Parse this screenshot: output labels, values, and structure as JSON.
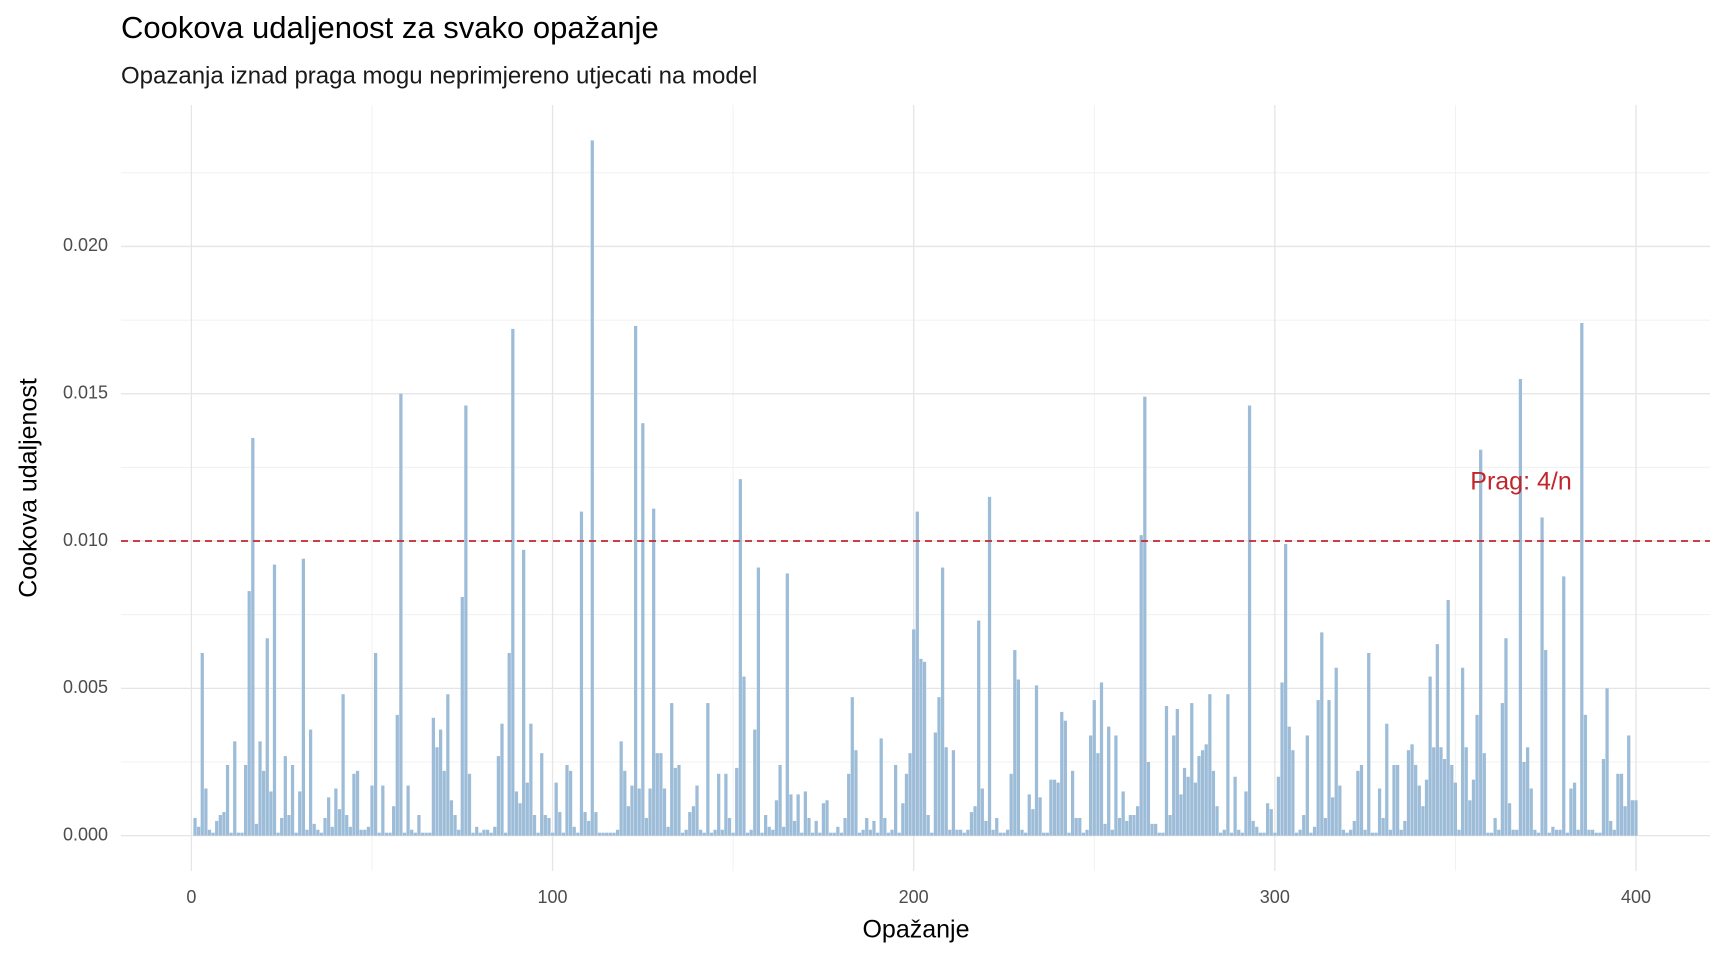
{
  "chart_data": {
    "type": "bar",
    "title": "Cookova udaljenost za svako opažanje",
    "subtitle": "Opazanja iznad praga mogu neprimjereno utjecati na model",
    "x_label": "Opažanje",
    "y_label": "Cookova udaljenost",
    "color": "#9dbcd8",
    "threshold": 0.01,
    "threshold_color": "#c0272d",
    "threshold_label": "Prag: 4/n",
    "grid": true,
    "xlim": [
      -19.5,
      420.5
    ],
    "ylim": [
      -0.0012,
      0.0248
    ],
    "xticks": [
      0,
      100,
      200,
      300,
      400
    ],
    "xminor": [
      50,
      150,
      250,
      350
    ],
    "yticks": [
      {
        "value": 0,
        "label": "0.000"
      },
      {
        "value": 0.005,
        "label": "0.005"
      },
      {
        "value": 0.01,
        "label": "0.010"
      },
      {
        "value": 0.015,
        "label": "0.015"
      },
      {
        "value": 0.02,
        "label": "0.020"
      }
    ],
    "yminor": [
      0.0025,
      0.0075,
      0.0125,
      0.0175,
      0.0225
    ],
    "x": [
      1,
      2,
      3,
      4,
      5,
      6,
      7,
      8,
      9,
      10,
      11,
      12,
      13,
      14,
      15,
      16,
      17,
      18,
      19,
      20,
      21,
      22,
      23,
      24,
      25,
      26,
      27,
      28,
      29,
      30,
      31,
      32,
      33,
      34,
      35,
      36,
      37,
      38,
      39,
      40,
      41,
      42,
      43,
      44,
      45,
      46,
      47,
      48,
      49,
      50,
      51,
      52,
      53,
      54,
      55,
      56,
      57,
      58,
      59,
      60,
      61,
      62,
      63,
      64,
      65,
      66,
      67,
      68,
      69,
      70,
      71,
      72,
      73,
      74,
      75,
      76,
      77,
      78,
      79,
      80,
      81,
      82,
      83,
      84,
      85,
      86,
      87,
      88,
      89,
      90,
      91,
      92,
      93,
      94,
      95,
      96,
      97,
      98,
      99,
      100,
      101,
      102,
      103,
      104,
      105,
      106,
      107,
      108,
      109,
      110,
      111,
      112,
      113,
      114,
      115,
      116,
      117,
      118,
      119,
      120,
      121,
      122,
      123,
      124,
      125,
      126,
      127,
      128,
      129,
      130,
      131,
      132,
      133,
      134,
      135,
      136,
      137,
      138,
      139,
      140,
      141,
      142,
      143,
      144,
      145,
      146,
      147,
      148,
      149,
      150,
      151,
      152,
      153,
      154,
      155,
      156,
      157,
      158,
      159,
      160,
      161,
      162,
      163,
      164,
      165,
      166,
      167,
      168,
      169,
      170,
      171,
      172,
      173,
      174,
      175,
      176,
      177,
      178,
      179,
      180,
      181,
      182,
      183,
      184,
      185,
      186,
      187,
      188,
      189,
      190,
      191,
      192,
      193,
      194,
      195,
      196,
      197,
      198,
      199,
      200,
      201,
      202,
      203,
      204,
      205,
      206,
      207,
      208,
      209,
      210,
      211,
      212,
      213,
      214,
      215,
      216,
      217,
      218,
      219,
      220,
      221,
      222,
      223,
      224,
      225,
      226,
      227,
      228,
      229,
      230,
      231,
      232,
      233,
      234,
      235,
      236,
      237,
      238,
      239,
      240,
      241,
      242,
      243,
      244,
      245,
      246,
      247,
      248,
      249,
      250,
      251,
      252,
      253,
      254,
      255,
      256,
      257,
      258,
      259,
      260,
      261,
      262,
      263,
      264,
      265,
      266,
      267,
      268,
      269,
      270,
      271,
      272,
      273,
      274,
      275,
      276,
      277,
      278,
      279,
      280,
      281,
      282,
      283,
      284,
      285,
      286,
      287,
      288,
      289,
      290,
      291,
      292,
      293,
      294,
      295,
      296,
      297,
      298,
      299,
      300,
      301,
      302,
      303,
      304,
      305,
      306,
      307,
      308,
      309,
      310,
      311,
      312,
      313,
      314,
      315,
      316,
      317,
      318,
      319,
      320,
      321,
      322,
      323,
      324,
      325,
      326,
      327,
      328,
      329,
      330,
      331,
      332,
      333,
      334,
      335,
      336,
      337,
      338,
      339,
      340,
      341,
      342,
      343,
      344,
      345,
      346,
      347,
      348,
      349,
      350,
      351,
      352,
      353,
      354,
      355,
      356,
      357,
      358,
      359,
      360,
      361,
      362,
      363,
      364,
      365,
      366,
      367,
      368,
      369,
      370,
      371,
      372,
      373,
      374,
      375,
      376,
      377,
      378,
      379,
      380,
      381,
      382,
      383,
      384,
      385,
      386,
      387,
      388,
      389,
      390,
      391,
      392,
      393,
      394,
      395,
      396,
      397,
      398,
      399,
      400
    ],
    "values": [
      0.0006,
      0.0003,
      0.0062,
      0.0016,
      0.0002,
      0.0001,
      0.0005,
      0.0007,
      0.0008,
      0.0024,
      0.0001,
      0.0032,
      0.0001,
      0.0001,
      0.0024,
      0.0083,
      0.0135,
      0.0004,
      0.0032,
      0.0022,
      0.0067,
      0.0015,
      0.0092,
      0.0001,
      0.0006,
      0.0027,
      0.0007,
      0.0024,
      0.0001,
      0.0015,
      0.0094,
      0.0002,
      0.0036,
      0.0004,
      0.0002,
      0.0001,
      0.0006,
      0.0013,
      0.0003,
      0.0016,
      0.0009,
      0.0048,
      0.0007,
      0.0003,
      0.0021,
      0.0022,
      0.0002,
      0.0002,
      0.0003,
      0.0017,
      0.0062,
      0.0001,
      0.0017,
      0.0001,
      0.0001,
      0.001,
      0.0041,
      0.015,
      0.0001,
      0.0017,
      0.0002,
      0.0001,
      0.0007,
      0.0001,
      0.0001,
      0.0001,
      0.004,
      0.003,
      0.0036,
      0.0022,
      0.0048,
      0.0012,
      0.0007,
      0.0002,
      0.0081,
      0.0146,
      0.0021,
      0.0001,
      0.0003,
      0.0001,
      0.0002,
      0.0002,
      0.0001,
      0.0003,
      0.0027,
      0.0038,
      0.0001,
      0.0062,
      0.0172,
      0.0015,
      0.0011,
      0.0097,
      0.0018,
      0.0038,
      0.0007,
      0.0001,
      0.0028,
      0.0007,
      0.0006,
      0.0001,
      0.0018,
      0.0008,
      0.0001,
      0.0024,
      0.0022,
      0.0003,
      0.0001,
      0.011,
      0.0008,
      0.0005,
      0.0236,
      0.0008,
      0.0001,
      0.0001,
      0.0001,
      0.0001,
      0.0001,
      0.0002,
      0.0032,
      0.0022,
      0.001,
      0.0017,
      0.0173,
      0.0016,
      0.014,
      0.0006,
      0.0016,
      0.0111,
      0.0028,
      0.0028,
      0.0016,
      0.0003,
      0.0045,
      0.0023,
      0.0024,
      0.0001,
      0.0002,
      0.0008,
      0.001,
      0.0017,
      0.0002,
      0.0001,
      0.0045,
      0.0001,
      0.0002,
      0.0021,
      0.0002,
      0.0021,
      0.0006,
      0.0001,
      0.0023,
      0.0121,
      0.0054,
      0.0001,
      0.0002,
      0.0036,
      0.0091,
      0.0001,
      0.0007,
      0.0003,
      0.0002,
      0.0012,
      0.0024,
      0.0003,
      0.0089,
      0.0014,
      0.0005,
      0.0014,
      0.0001,
      0.0015,
      0.0006,
      0.0001,
      0.0005,
      0.0001,
      0.0011,
      0.0012,
      0.0001,
      0.0001,
      0.0003,
      0.0001,
      0.0006,
      0.0021,
      0.0047,
      0.0029,
      0.0001,
      0.0002,
      0.0006,
      0.0002,
      0.0005,
      0.0001,
      0.0033,
      0.0006,
      0.0001,
      0.0002,
      0.0024,
      0.0001,
      0.0011,
      0.0021,
      0.0028,
      0.007,
      0.011,
      0.006,
      0.0059,
      0.0007,
      0.0001,
      0.0035,
      0.0047,
      0.0091,
      0.003,
      0.0002,
      0.0029,
      0.0002,
      0.0002,
      0.0001,
      0.0002,
      0.0008,
      0.001,
      0.0073,
      0.0016,
      0.0005,
      0.0115,
      0.0002,
      0.0006,
      0.0001,
      0.0001,
      0.0002,
      0.0021,
      0.0063,
      0.0053,
      0.0002,
      0.0001,
      0.0014,
      0.0009,
      0.0051,
      0.0013,
      0.0001,
      0.0001,
      0.0019,
      0.0019,
      0.0018,
      0.0042,
      0.0039,
      0.0001,
      0.0022,
      0.0006,
      0.0006,
      0.0001,
      0.0002,
      0.0034,
      0.0046,
      0.0028,
      0.0052,
      0.0004,
      0.0037,
      0.0002,
      0.0034,
      0.0006,
      0.0015,
      0.0005,
      0.0007,
      0.0007,
      0.001,
      0.0102,
      0.0149,
      0.0025,
      0.0004,
      0.0004,
      0.0001,
      0.0001,
      0.0044,
      0.0007,
      0.0034,
      0.0043,
      0.0014,
      0.0023,
      0.002,
      0.0045,
      0.0018,
      0.0027,
      0.0029,
      0.0031,
      0.0048,
      0.0022,
      0.001,
      0.0001,
      0.0002,
      0.0048,
      0.0001,
      0.002,
      0.0002,
      0.0001,
      0.0015,
      0.0146,
      0.0005,
      0.0003,
      0.0001,
      0.0001,
      0.0011,
      0.0009,
      0.0001,
      0.002,
      0.0052,
      0.0099,
      0.0037,
      0.0029,
      0.0001,
      0.0002,
      0.0007,
      0.0034,
      0.0001,
      0.0003,
      0.0046,
      0.0069,
      0.0006,
      0.0046,
      0.0013,
      0.0057,
      0.0017,
      0.0002,
      0.0001,
      0.0002,
      0.0005,
      0.0022,
      0.0024,
      0.0002,
      0.0062,
      0.0001,
      0.0001,
      0.0016,
      0.0006,
      0.0038,
      0.0002,
      0.0024,
      0.0024,
      0.0002,
      0.0005,
      0.0029,
      0.0031,
      0.0024,
      0.0017,
      0.001,
      0.0019,
      0.0054,
      0.003,
      0.0065,
      0.003,
      0.0026,
      0.008,
      0.0024,
      0.0018,
      0.0002,
      0.0057,
      0.003,
      0.0012,
      0.0019,
      0.0041,
      0.0131,
      0.0028,
      0.0001,
      0.0001,
      0.0006,
      0.0002,
      0.0045,
      0.0067,
      0.0011,
      0.0002,
      0.0002,
      0.0155,
      0.0025,
      0.003,
      0.0016,
      0.0002,
      0.0001,
      0.0108,
      0.0063,
      0.0001,
      0.0003,
      0.0002,
      0.0002,
      0.0088,
      0.0001,
      0.0016,
      0.0018,
      0.0002,
      0.0174,
      0.0041,
      0.0002,
      0.0002,
      0.0001,
      0.0001,
      0.0026,
      0.005,
      0.0005,
      0.0002,
      0.0021,
      0.0021,
      0.001,
      0.0034,
      0.0012,
      0.0012
    ]
  }
}
